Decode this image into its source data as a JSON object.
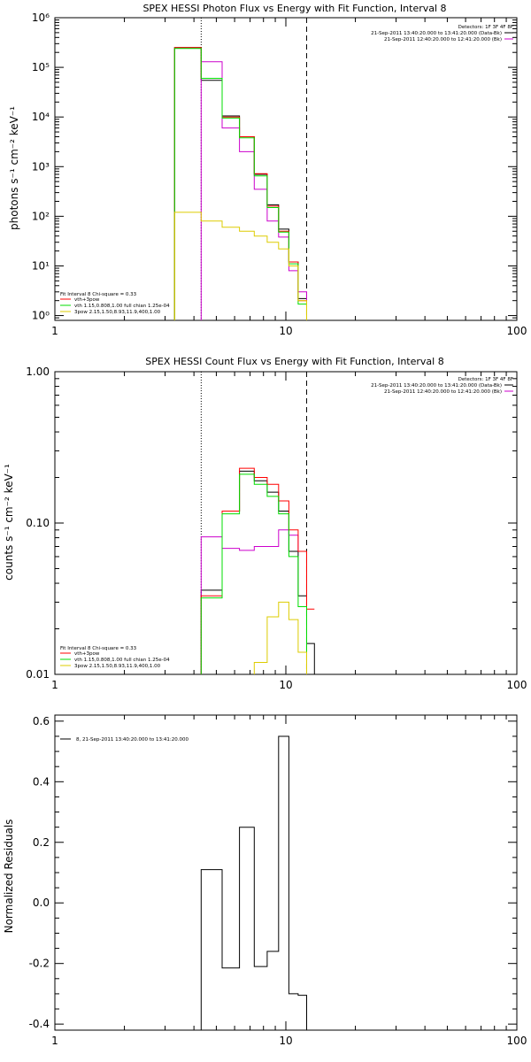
{
  "chart_data": [
    {
      "type": "line",
      "title": "SPEX HESSI Photon Flux vs Energy with Fit Function, Interval 8",
      "xlabel": "",
      "ylabel": "photons s⁻¹ cm⁻² keV⁻¹",
      "x_scale": "log",
      "y_scale": "log",
      "xlim": [
        1,
        100
      ],
      "ylim": [
        0.8,
        1000000
      ],
      "x_ticks": [
        "1",
        "10",
        "100"
      ],
      "y_ticks": [
        "10⁰",
        "10¹",
        "10²",
        "10³",
        "10⁴",
        "10⁵",
        "10⁶"
      ],
      "y_tick_values": [
        1,
        10,
        100,
        1000,
        10000,
        100000,
        1000000
      ],
      "vlines": [
        {
          "x": 4.3,
          "style": "dotted"
        },
        {
          "x": 12.3,
          "style": "dashed"
        }
      ],
      "legend_top_right": [
        "Detectors: 1F 3F 4F 8F",
        "21-Sep-2011 13:40:20.000 to 13:41:20.000 (Data-Bk)",
        "21-Sep-2011 12:40:20.000 to 12:41:20.000 (Bk)"
      ],
      "legend_bottom_left": {
        "header": "Fit Interval  8    Chi-square = 0.33",
        "entries": [
          "vth+3pow",
          "vth 1.15,0.808,1.00  full chian 1.25e-04",
          "3pow 2.15,1.50,8.93,11.9,400,1.00"
        ]
      },
      "edges": [
        3.3,
        4.3,
        5.3,
        6.3,
        7.3,
        8.3,
        9.3,
        10.3,
        11.3,
        12.3
      ],
      "series": [
        {
          "color": "#000000",
          "values": [
            250000,
            55000,
            10500,
            4000,
            700,
            170,
            55,
            12,
            2.2
          ]
        },
        {
          "color": "#cc00cc",
          "values": [
            null,
            130000,
            6000,
            2000,
            350,
            80,
            38,
            8,
            3
          ]
        },
        {
          "color": "#ff0000",
          "values": [
            250000,
            60000,
            10000,
            4000,
            720,
            160,
            50,
            12,
            2
          ]
        },
        {
          "color": "#00dd00",
          "values": [
            240000,
            60000,
            9500,
            3800,
            650,
            150,
            48,
            11,
            1.7
          ]
        },
        {
          "color": "#ddcc00",
          "values": [
            120,
            80,
            60,
            50,
            40,
            30,
            22,
            10,
            2
          ]
        }
      ]
    },
    {
      "type": "line",
      "title": "SPEX HESSI Count Flux vs Energy with Fit Function, Interval 8",
      "xlabel": "",
      "ylabel": "counts s⁻¹ cm⁻² keV⁻¹",
      "x_scale": "log",
      "y_scale": "log",
      "xlim": [
        1,
        100
      ],
      "ylim": [
        0.01,
        1.0
      ],
      "x_ticks": [
        "1",
        "10",
        "100"
      ],
      "y_ticks": [
        "0.01",
        "0.10",
        "1.00"
      ],
      "y_tick_values": [
        0.01,
        0.1,
        1.0
      ],
      "vlines": [
        {
          "x": 4.3,
          "style": "dotted"
        },
        {
          "x": 12.3,
          "style": "dashed"
        }
      ],
      "legend_top_right": [
        "Detectors: 1F 3F 4F 8F",
        "21-Sep-2011 13:40:20.000 to 13:41:20.000 (Data-Bk)",
        "21-Sep-2011 12:40:20.000 to 12:41:20.000 (Bk)"
      ],
      "legend_bottom_left": {
        "header": "Fit Interval  8    Chi-square = 0.33",
        "entries": [
          "vth+3pow",
          "vth 1.15,0.808,1.00  full chian 1.25e-04",
          "3pow 2.15,1.50,8.93,11.9,400,1.00"
        ]
      },
      "edges": [
        4.3,
        5.3,
        6.3,
        7.3,
        8.3,
        9.3,
        10.3,
        11.3,
        12.3,
        13.3
      ],
      "series": [
        {
          "color": "#000000",
          "values": [
            0.036,
            0.12,
            0.22,
            0.19,
            0.16,
            0.12,
            0.065,
            0.033,
            0.016,
            null
          ]
        },
        {
          "color": "#cc00cc",
          "values": [
            0.081,
            0.068,
            0.066,
            0.07,
            0.07,
            0.09,
            0.083,
            0.065,
            null,
            null
          ]
        },
        {
          "color": "#ff0000",
          "values": [
            0.033,
            0.12,
            0.23,
            0.2,
            0.18,
            0.14,
            0.09,
            0.065,
            0.027,
            0.016
          ]
        },
        {
          "color": "#00dd00",
          "values": [
            0.032,
            0.115,
            0.21,
            0.18,
            0.15,
            0.115,
            0.06,
            0.028,
            null,
            null
          ]
        },
        {
          "color": "#ddcc00",
          "values": [
            null,
            null,
            null,
            0.012,
            0.024,
            0.03,
            0.023,
            0.014,
            null,
            null
          ]
        }
      ]
    },
    {
      "type": "line",
      "title": "",
      "xlabel": "",
      "ylabel": "Normalized Residuals",
      "x_scale": "log",
      "y_scale": "linear",
      "xlim": [
        1,
        100
      ],
      "ylim": [
        -0.42,
        0.62
      ],
      "x_ticks": [
        "1",
        "10",
        "100"
      ],
      "y_ticks": [
        "-0.4",
        "-0.2",
        "0.0",
        "0.2",
        "0.4",
        "0.6"
      ],
      "y_tick_values": [
        -0.4,
        -0.2,
        0.0,
        0.2,
        0.4,
        0.6
      ],
      "legend": "8, 21-Sep-2011 13:40:20.000 to 13:41:20.000",
      "edges": [
        4.3,
        5.3,
        6.3,
        7.3,
        8.3,
        9.3,
        10.3,
        11.3,
        12.3
      ],
      "series": [
        {
          "color": "#000000",
          "values": [
            0.11,
            -0.215,
            0.25,
            -0.21,
            -0.16,
            0.55,
            -0.3,
            -0.305
          ]
        }
      ]
    }
  ]
}
